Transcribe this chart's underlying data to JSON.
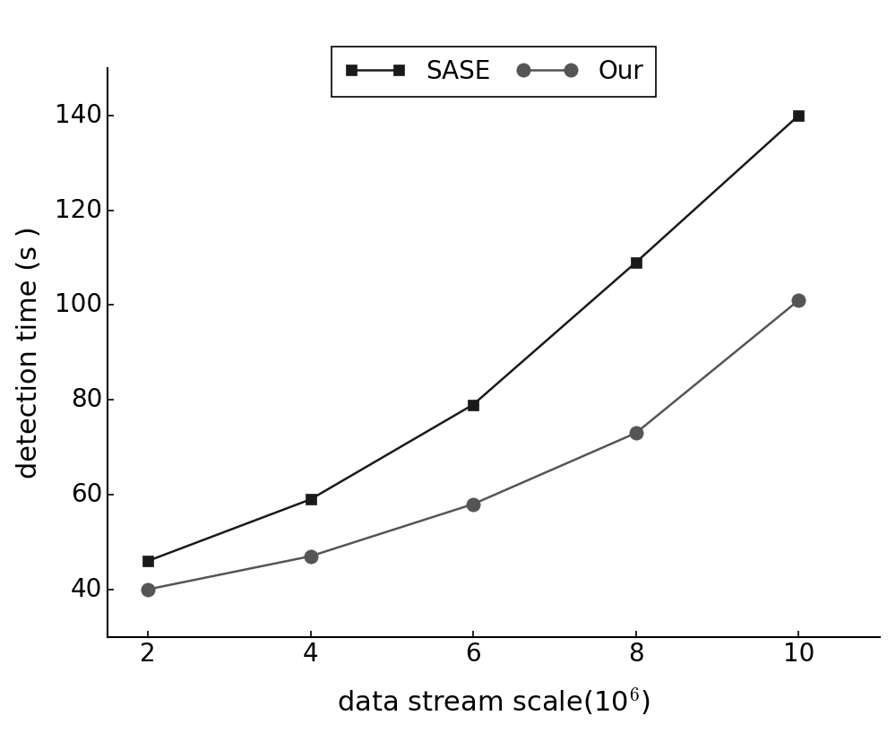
{
  "x": [
    2,
    4,
    6,
    8,
    10
  ],
  "sase_y": [
    46,
    59,
    79,
    109,
    140
  ],
  "our_y": [
    40,
    47,
    58,
    73,
    101
  ],
  "sase_color": "#1a1a1a",
  "our_color": "#555555",
  "sase_marker": "s",
  "our_marker": "o",
  "sase_label": "SASE",
  "our_label": "Our",
  "xlabel": "data stream scale(10$^6$)",
  "ylabel": "detection time (s )",
  "xlim": [
    1.5,
    11
  ],
  "ylim": [
    30,
    150
  ],
  "yticks": [
    40,
    60,
    80,
    100,
    120,
    140
  ],
  "xticks": [
    2,
    4,
    6,
    8,
    10
  ],
  "sase_marker_size": 9,
  "our_marker_size": 11,
  "line_width": 1.8,
  "label_font_size": 22,
  "tick_font_size": 20,
  "legend_font_size": 20,
  "background_color": "#ffffff"
}
